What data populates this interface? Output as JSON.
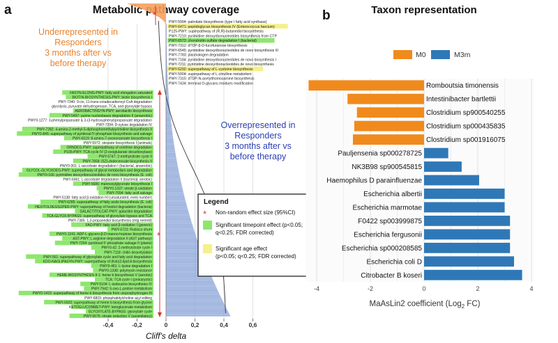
{
  "panel_a": {
    "letter": "a",
    "title": "Metabolic pathway coverage",
    "under_text": [
      "Underrepresented in",
      "Responders",
      "3 months after vs",
      "before therapy"
    ],
    "over_text": [
      "Overrepresented in",
      "Responders",
      "3 months after vs",
      "before therapy"
    ],
    "xlabel": "Cliff's delta",
    "legend": {
      "title": "Legend",
      "items": [
        {
          "kind": "star",
          "label": [
            "Non-random effect size (95%CI)"
          ]
        },
        {
          "kind": "green",
          "label": [
            "Significant timepoint effect (p<0.05;",
            "q<0.25; FDR corrected)"
          ]
        },
        {
          "kind": "yellow",
          "label": [
            "Significant age effect",
            "(p<0.05; q<0.25; FDR corrected)"
          ]
        }
      ]
    },
    "colors": {
      "under": "#f5a15e",
      "over": "#8aa4d8",
      "green": "#8ee66e",
      "yellow": "#f5f08a",
      "under_text": "#e8822d",
      "over_text": "#2a3fb5"
    },
    "top_labels": [
      {
        "text": "PWY-5994: palmitate biosynthesis (type I fatty acid synthase)",
        "hl": "none"
      },
      {
        "text": "PWY-6471: peptidoglycan biosynthesis IV (Enterococcus faecium)",
        "hl": "yellow"
      },
      {
        "text": "P125-PWY: superpathway of (R,R)-butanediol biosynthesis",
        "hl": "none"
      },
      {
        "text": "PWY-7210: pyrimidine deoxyribonucleotides biosynthesis from CTP",
        "hl": "none"
      },
      {
        "text": "PWY-6572: chondroitin sulfate degradation I (bacterial)",
        "hl": "green"
      },
      {
        "text": "PWY-7312: dTDP-&beta;-D-fucofuranose biosynthesis",
        "hl": "none"
      },
      {
        "text": "PWY-6545: pyrimidine deoxyribonucleotides de novo biosynthesis III",
        "hl": "none"
      },
      {
        "text": "PWY-7783: plasmalogen degradation",
        "hl": "none"
      },
      {
        "text": "PWY-7184: pyrimidine deoxyribonucleotides de novo biosynthesis I",
        "hl": "none"
      },
      {
        "text": "PWY-7211: pyrimidine deoxyribonucleotides de novo biosynthesis",
        "hl": "none"
      },
      {
        "text": "PWY-6292: superpathway of L-cysteine biosynthesis",
        "hl": "yellow"
      },
      {
        "text": "PWY-5004: superpathway of L-citrulline metabolism",
        "hl": "none"
      },
      {
        "text": "PWY-7315: dTDP-N-acetylthomosamine biosynthesis",
        "hl": "none"
      },
      {
        "text": "PWY-7434: terminal O-glycans residues modification",
        "hl": "none"
      }
    ],
    "left_labels": [
      {
        "text": "FASYN-ELONG-PWY: fatty acid elongation saturated",
        "hl": "green"
      },
      {
        "text": "BIOTIN-BIOSYNTHESIS-PWY: biotin biosynthesis I",
        "hl": "green"
      },
      {
        "text": "PWY-7340: 9-cis, 11-trans-octadecadienoyl-CoA degradation",
        "hl": "none"
      },
      {
        "text": "glycolysis, pyruvate dehydrogenase, TCA, and glyoxylate bypass",
        "hl": "none"
      },
      {
        "text": "AEROBACTINSYN-PWY: aerobactin biosynthesis",
        "hl": "green"
      },
      {
        "text": "PWY-5497: purine nucleobases degradation II (anaerobic)",
        "hl": "green"
      },
      {
        "text": "PWY0-1277: 3-phenylpropanoate & 3-(3-hydroxyphenyl)propanoate degradation",
        "hl": "none"
      },
      {
        "text": "PWY-7294: D-xylose degradation IV",
        "hl": "none"
      },
      {
        "text": "PWY-7282: 4-amino-2-methyl-5-diphosphomethylpyrimidine biosynthesis II",
        "hl": "green"
      },
      {
        "text": "PWY0-845: superpathway of pyridoxal 5'-phosphate biosynthesis and salvage",
        "hl": "green"
      },
      {
        "text": "PWY-6519: 8-amino-7-oxononanoate biosynthesis I",
        "hl": "green"
      },
      {
        "text": "PWY-5972: stearate biosynthesis I (animals)",
        "hl": "none"
      },
      {
        "text": "ORNDEG-PWY: superpathway of ornithine degradation",
        "hl": "green"
      },
      {
        "text": "P105-PWY: TCA cycle IV (2-oxoglutarate decarboxylase)",
        "hl": "green"
      },
      {
        "text": "PWY-5747: 2-methylcitrate cycle II",
        "hl": "green"
      },
      {
        "text": "PWY-7858: (5Z)-dodecenoate biosynthesis II",
        "hl": "green"
      },
      {
        "text": "PWY0-301: L-ascorbate degradation I (bacterial, anaerobic)",
        "hl": "none"
      },
      {
        "text": "GLYCOL-GLYOXDEG-PWY: superpathway of glycol metabolism and degradation",
        "hl": "green"
      },
      {
        "text": "PWY0-166: pyrimidine deoxyribonucleotides de novo biosynthesis (E. coli)",
        "hl": "green"
      },
      {
        "text": "PWY-6961: L-ascorbate degradation II (bacterial, aerobic)",
        "hl": "none"
      },
      {
        "text": "PWY-5686: mannosylglycerate biosynthesis I",
        "hl": "green"
      },
      {
        "text": "PWY0-1337: oleate &beta;-oxidation",
        "hl": "green"
      },
      {
        "text": "PWY-7094: fatty acid salvage",
        "hl": "green"
      },
      {
        "text": "PWY-5138: fatty acid &beta;-oxidation IV (unsaturated, even number)",
        "hl": "none"
      },
      {
        "text": "PWY-6285: superpathway of fatty acids biosynthesis (E. coli)",
        "hl": "green"
      },
      {
        "text": "HEXITOLDEGSUPER-PWY: superpathway of hexitol degradation (bacteria)",
        "hl": "green"
      },
      {
        "text": "GALACTITOLCAT-PWY: galactitol degradation",
        "hl": "green"
      },
      {
        "text": "TCA-GLYOX-BYPASS: superpathway of glyoxylate bypass and TCA",
        "hl": "green"
      },
      {
        "text": "PWY-7385: 1,3-propanediol biosynthesis (eng neered)",
        "hl": "none"
      },
      {
        "text": "FAO-PWY: fatty acid &beta;-oxidation I (generic)",
        "hl": "green"
      },
      {
        "text": "PWY-5723: Rubisco shunt",
        "hl": "green"
      },
      {
        "text": "PWY0-1241: ADP-L-glycero-&beta;-D-manno-heptose biosynthesis",
        "hl": "green"
      },
      {
        "text": "AST-PWY: L-arginine degradation II (AST pathway)",
        "hl": "green"
      },
      {
        "text": "PWY-7204: pyridoxal 5'-phosphate salvage II (plants)",
        "hl": "green"
      },
      {
        "text": "PWY0-42: 2-methylcitrate cycle I",
        "hl": "green"
      },
      {
        "text": "PWY-7118: chitin deacetylation",
        "hl": "green"
      },
      {
        "text": "PWY-561: superpathway of glyoxylate cycle and fatty acid degradation",
        "hl": "green"
      },
      {
        "text": "KDO-NAGLIPASYN-PWY: superpathway of (Kdo)2-lipid A biosynthesis",
        "hl": "green"
      },
      {
        "text": "PWY0-461: L-lysine degradation I",
        "hl": "green"
      },
      {
        "text": "PWY0-1338: polymyxin resistance",
        "hl": "green"
      },
      {
        "text": "HEME-BIOSYNTHESIS-II-1: heme b biosynthesis V (aerobic)",
        "hl": "green"
      },
      {
        "text": "TCA: TCA cycle I (prokaryotic)",
        "hl": "green"
      },
      {
        "text": "PWY-5104: L-isoleucine biosynthesis IV",
        "hl": "green"
      },
      {
        "text": "PWY-7942: 5-oxo-L-proline metabolism",
        "hl": "green"
      },
      {
        "text": "PWY0-1415: superpathway of heme b biosynthesis from uroporphyrinogen-III",
        "hl": "green"
      },
      {
        "text": "PWY-6803: phosphatidylcholine acyl editing",
        "hl": "none"
      },
      {
        "text": "PWY-5920: superpathway of heme b biosynthesis from glycine",
        "hl": "green"
      },
      {
        "text": "KETOGLUCONMET-PWY: ketogluconate metabolism",
        "hl": "green"
      },
      {
        "text": "GLYOXYLATE-BYPASS: glyoxylate cycle",
        "hl": "green"
      },
      {
        "text": "PWY-5675: nitrate reduction V (assimilatory)",
        "hl": "green"
      }
    ]
  },
  "panel_b": {
    "letter": "b",
    "title": "Taxon representation",
    "legend": [
      {
        "name": "M0",
        "color": "#f08a1c"
      },
      {
        "name": "M3m",
        "color": "#2f78b7"
      }
    ],
    "xlabel_main": "MaAsLin2 coefficient (Log",
    "xlabel_sub": "2",
    "xlabel_end": " FC)"
  },
  "chart_data": [
    {
      "type": "bar",
      "orientation": "horizontal",
      "title": "Metabolic pathway coverage",
      "xlabel": "Cliff's delta",
      "xlim": [
        -0.5,
        0.72
      ],
      "xticks": [
        "-0,4",
        "-0,2",
        "0",
        "0,2",
        "0,4",
        "0,6"
      ],
      "xtick_values": [
        -0.4,
        -0.2,
        0,
        0.2,
        0.4,
        0.6
      ],
      "n_negative": 30,
      "n_positive": 230,
      "min_value": -0.26,
      "max_value": 0.44,
      "grid": true
    },
    {
      "type": "bar",
      "orientation": "horizontal",
      "title": "Taxon representation",
      "xlabel": "MaAsLin2 coefficient (Log2 FC)",
      "xlim": [
        -4.4,
        4.1
      ],
      "xticks": [
        "-4",
        "-2",
        "0",
        "2",
        "4"
      ],
      "xtick_values": [
        -4,
        -2,
        0,
        2,
        4
      ],
      "grid": true,
      "categories": [
        "Romboutsia timonensis",
        "Intestinibacter bartlettii",
        "Clostridium sp900540255",
        "Clostridium sp000435835",
        "Clostridium sp001916075",
        "Pauljensenia sp000278725",
        "NK3B98 sp900545815",
        "Haemophilus D parainfluenzae",
        "Escherichia albertii",
        "Escherichia marmotae",
        "F0422 sp003999875",
        "Escherichia fergusonii",
        "Escherichia sp000208585",
        "Escherichia coli D",
        "Citrobacter B koseri"
      ],
      "values": [
        -4.3,
        -2.85,
        -2.5,
        -2.6,
        -2.65,
        0.9,
        1.4,
        2.05,
        3.0,
        3.0,
        3.2,
        3.2,
        3.2,
        3.35,
        3.65
      ],
      "series_groups": [
        "M0",
        "M0",
        "M0",
        "M0",
        "M0",
        "M3m",
        "M3m",
        "M3m",
        "M3m",
        "M3m",
        "M3m",
        "M3m",
        "M3m",
        "M3m",
        "M3m"
      ]
    }
  ]
}
